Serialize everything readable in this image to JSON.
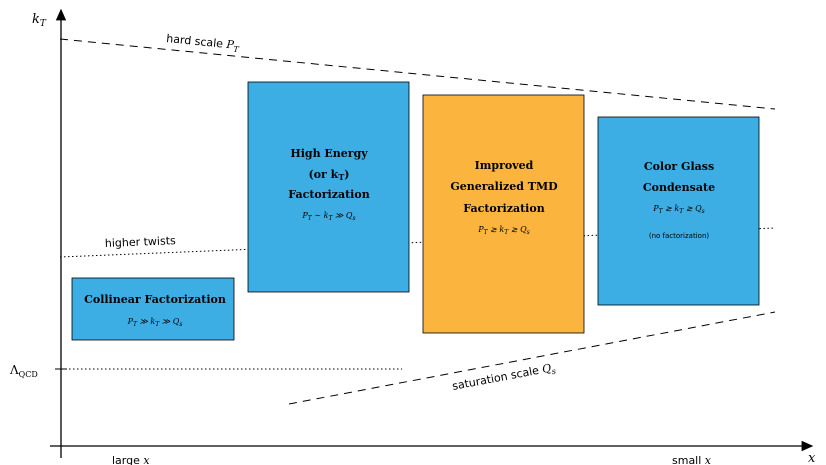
{
  "axes": {
    "y_label": "k_T",
    "x_label": "x",
    "x_left_label": "large x",
    "x_right_label": "small x",
    "lambda_label": "Λ_QCD"
  },
  "lines": {
    "hard_scale": "hard scale P_T",
    "higher_twists": "higher twists",
    "saturation_scale": "saturation scale Q_s"
  },
  "boxes": {
    "collinear": {
      "title": "Collinear Factorization",
      "formula": "P_T ≫ k_T ≫ Q_s",
      "color": "#3DAEE4"
    },
    "high_energy": {
      "title_line1": "High Energy",
      "title_line2": "(or k_T)",
      "title_line3": "Factorization",
      "formula": "P_T ∼ k_T ≫ Q_s",
      "color": "#3DAEE4"
    },
    "improved_tmd": {
      "title_line1": "Improved",
      "title_line2": "Generalized TMD",
      "title_line3": "Factorization",
      "formula": "P_T ≳ k_T ≳ Q_s",
      "color": "#FBB53E"
    },
    "cgc": {
      "title_line1": "Color Glass",
      "title_line2": "Condensate",
      "formula": "P_T ≳ k_T ≳ Q_s",
      "note": "(no factorization)",
      "color": "#3DAEE4"
    }
  }
}
